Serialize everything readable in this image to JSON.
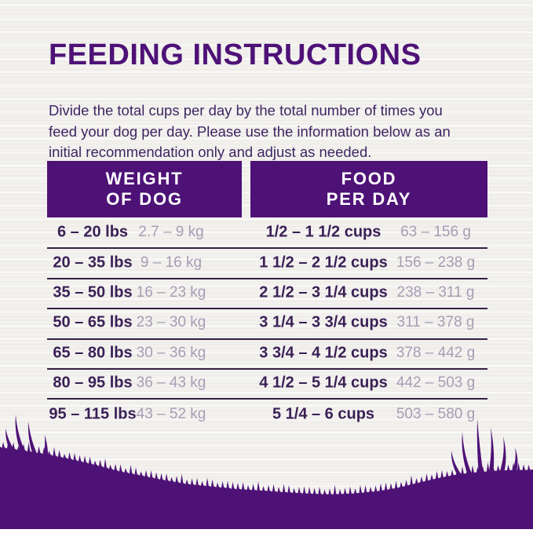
{
  "title": "FEEDING INSTRUCTIONS",
  "intro": {
    "lines": [
      "Divide the total cups per day by the total number of times you",
      "feed your dog per day. Please use the information below as an",
      "initial recommendation only and adjust as needed."
    ]
  },
  "table": {
    "headers": [
      {
        "lines": [
          "WEIGHT",
          "OF DOG"
        ]
      },
      {
        "lines": [
          "FOOD",
          "PER DAY"
        ]
      }
    ],
    "rows": [
      {
        "lbs": "6 – 20 lbs",
        "kg": "2.7 – 9 kg",
        "cups": "1/2 – 1 1/2 cups",
        "grams": "63 – 156 g"
      },
      {
        "lbs": "20 – 35 lbs",
        "kg": "9 – 16 kg",
        "cups": "1 1/2 – 2 1/2 cups",
        "grams": "156 – 238 g"
      },
      {
        "lbs": "35 – 50 lbs",
        "kg": "16 – 23 kg",
        "cups": "2 1/2 – 3 1/4 cups",
        "grams": "238 – 311 g"
      },
      {
        "lbs": "50 – 65 lbs",
        "kg": "23 – 30 kg",
        "cups": "3 1/4 – 3 3/4 cups",
        "grams": "311 – 378 g"
      },
      {
        "lbs": "65 – 80 lbs",
        "kg": "30 – 36 kg",
        "cups": "3 3/4 – 4 1/2 cups",
        "grams": "378 – 442 g"
      },
      {
        "lbs": "80 – 95 lbs",
        "kg": "36 – 43 kg",
        "cups": "4 1/2 – 5 1/4 cups",
        "grams": "442 – 503 g"
      },
      {
        "lbs": "95 – 115 lbs",
        "kg": "43 – 52 kg",
        "cups": "5 1/4 – 6 cups",
        "grams": "503 – 580 g"
      }
    ]
  },
  "colors": {
    "brand_purple": "#4e1277",
    "dark_text": "#3a1f55",
    "body_text": "#3e2562",
    "muted_metric": "#a69db4",
    "divider": "#352045",
    "background": "#f2f1ee",
    "header_text": "#ffffff"
  },
  "decoration": {
    "grass": "grass-silhouette"
  }
}
